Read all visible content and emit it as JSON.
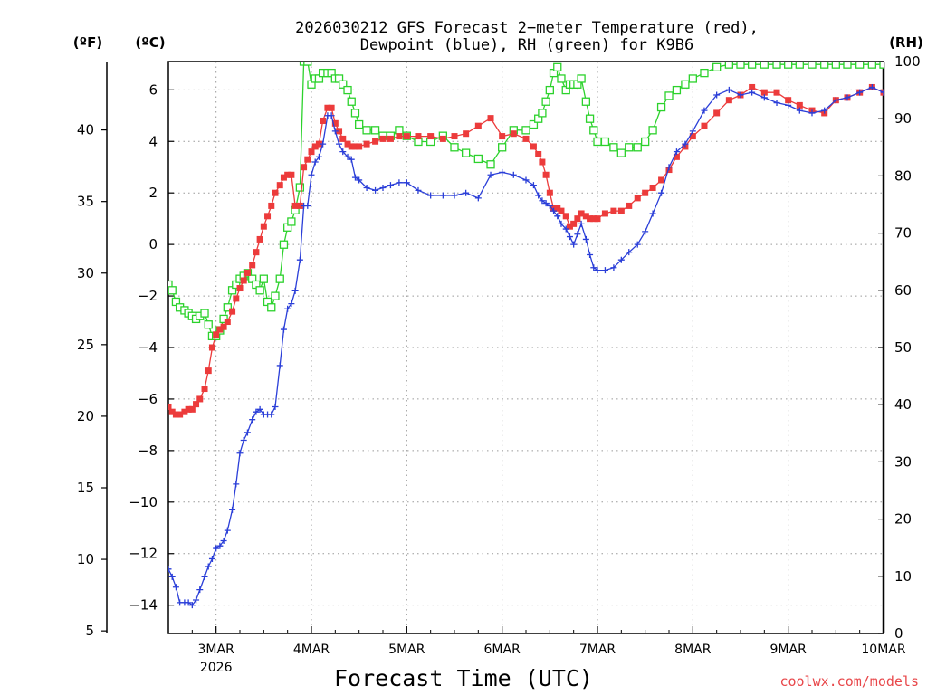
{
  "chart_data": {
    "type": "line",
    "title_line1": "2026030212 GFS Forecast 2−meter Temperature (red),",
    "title_line2": "Dewpoint (blue), RH (green) for K9B6",
    "units": {
      "fahrenheit": "(ºF)",
      "celsius": "(ºC)",
      "rh": "(RH)"
    },
    "xlabel": "Forecast Time (UTC)",
    "credit": "coolwx.com/models",
    "x_range": [
      -0.5,
      7.0
    ],
    "x_ticks": [
      {
        "day": 0,
        "label": "3MAR",
        "label2": "2026"
      },
      {
        "day": 1,
        "label": "4MAR"
      },
      {
        "day": 2,
        "label": "5MAR"
      },
      {
        "day": 3,
        "label": "6MAR"
      },
      {
        "day": 4,
        "label": "7MAR"
      },
      {
        "day": 5,
        "label": "8MAR"
      },
      {
        "day": 6,
        "label": "9MAR"
      },
      {
        "day": 7,
        "label": "10MAR"
      }
    ],
    "celsius_axis": {
      "range": [
        -15.1,
        7.1
      ],
      "ticks": [
        6,
        4,
        2,
        0,
        -2,
        -4,
        -6,
        -8,
        -10,
        -12,
        -14
      ],
      "labels": [
        "6",
        "4",
        "2",
        "0",
        "−2",
        "−4",
        "−6",
        "−8",
        "−10",
        "−12",
        "−14"
      ]
    },
    "fahrenheit_axis": {
      "ticks": [
        40,
        35,
        30,
        25,
        20,
        15,
        10,
        5
      ],
      "labels": [
        "40",
        "35",
        "30",
        "25",
        "20",
        "15",
        "10",
        "5"
      ]
    },
    "rh_axis": {
      "range": [
        0,
        100
      ],
      "ticks": [
        100,
        90,
        80,
        70,
        60,
        50,
        40,
        30,
        20,
        10,
        0
      ],
      "labels": [
        "100",
        "90",
        "80",
        "70",
        "60",
        "50",
        "40",
        "30",
        "20",
        "10",
        "0"
      ]
    },
    "series": [
      {
        "name": "Temperature",
        "unit": "C",
        "color": "#ec3b3b",
        "marker": "filled-square",
        "x": [
          -0.5,
          -0.46,
          -0.42,
          -0.38,
          -0.33,
          -0.29,
          -0.25,
          -0.21,
          -0.17,
          -0.12,
          -0.08,
          -0.04,
          0,
          0.04,
          0.08,
          0.12,
          0.17,
          0.21,
          0.25,
          0.29,
          0.33,
          0.38,
          0.42,
          0.46,
          0.5,
          0.54,
          0.58,
          0.62,
          0.67,
          0.71,
          0.75,
          0.79,
          0.83,
          0.88,
          0.92,
          0.96,
          1,
          1.04,
          1.08,
          1.12,
          1.17,
          1.21,
          1.25,
          1.29,
          1.33,
          1.38,
          1.42,
          1.46,
          1.5,
          1.58,
          1.67,
          1.75,
          1.83,
          1.92,
          2,
          2.12,
          2.25,
          2.38,
          2.5,
          2.62,
          2.75,
          2.88,
          3,
          3.12,
          3.25,
          3.33,
          3.38,
          3.42,
          3.46,
          3.5,
          3.54,
          3.58,
          3.62,
          3.67,
          3.71,
          3.75,
          3.79,
          3.83,
          3.88,
          3.92,
          3.96,
          4,
          4.08,
          4.17,
          4.25,
          4.33,
          4.42,
          4.5,
          4.58,
          4.67,
          4.75,
          4.83,
          4.92,
          5,
          5.12,
          5.25,
          5.38,
          5.5,
          5.62,
          5.75,
          5.88,
          6,
          6.12,
          6.25,
          6.38,
          6.5,
          6.62,
          6.75,
          6.88,
          7
        ],
        "values": [
          -6.3,
          -6.5,
          -6.6,
          -6.6,
          -6.5,
          -6.4,
          -6.4,
          -6.2,
          -6.0,
          -5.6,
          -4.9,
          -4.0,
          -3.5,
          -3.3,
          -3.2,
          -3.0,
          -2.6,
          -2.1,
          -1.7,
          -1.4,
          -1.1,
          -0.8,
          -0.3,
          0.2,
          0.7,
          1.1,
          1.5,
          2.0,
          2.3,
          2.6,
          2.7,
          2.7,
          1.5,
          1.5,
          3.0,
          3.3,
          3.6,
          3.8,
          3.9,
          4.8,
          5.3,
          5.3,
          4.7,
          4.4,
          4.1,
          3.9,
          3.8,
          3.8,
          3.8,
          3.9,
          4.0,
          4.1,
          4.1,
          4.2,
          4.2,
          4.2,
          4.2,
          4.1,
          4.2,
          4.3,
          4.6,
          4.9,
          4.2,
          4.3,
          4.1,
          3.8,
          3.5,
          3.2,
          2.7,
          2.0,
          1.4,
          1.4,
          1.3,
          1.1,
          0.7,
          0.8,
          1.0,
          1.2,
          1.1,
          1.0,
          1.0,
          1.0,
          1.2,
          1.3,
          1.3,
          1.5,
          1.8,
          2.0,
          2.2,
          2.5,
          2.9,
          3.4,
          3.8,
          4.2,
          4.6,
          5.1,
          5.6,
          5.8,
          6.1,
          5.9,
          5.9,
          5.6,
          5.4,
          5.2,
          5.1,
          5.6,
          5.7,
          5.9,
          6.1,
          5.9
        ]
      },
      {
        "name": "Dewpoint",
        "unit": "C",
        "color": "#2a3ed8",
        "marker": "plus",
        "x": [
          -0.5,
          -0.46,
          -0.42,
          -0.38,
          -0.33,
          -0.29,
          -0.25,
          -0.21,
          -0.17,
          -0.12,
          -0.08,
          -0.04,
          0,
          0.04,
          0.08,
          0.12,
          0.17,
          0.21,
          0.25,
          0.29,
          0.33,
          0.38,
          0.42,
          0.46,
          0.5,
          0.54,
          0.58,
          0.62,
          0.67,
          0.71,
          0.75,
          0.79,
          0.83,
          0.88,
          0.92,
          0.96,
          1,
          1.04,
          1.08,
          1.12,
          1.17,
          1.21,
          1.25,
          1.29,
          1.33,
          1.38,
          1.42,
          1.46,
          1.5,
          1.58,
          1.67,
          1.75,
          1.83,
          1.92,
          2,
          2.12,
          2.25,
          2.38,
          2.5,
          2.62,
          2.75,
          2.88,
          3,
          3.12,
          3.25,
          3.33,
          3.38,
          3.42,
          3.46,
          3.5,
          3.54,
          3.58,
          3.62,
          3.67,
          3.71,
          3.75,
          3.79,
          3.83,
          3.88,
          3.92,
          3.96,
          4,
          4.08,
          4.17,
          4.25,
          4.33,
          4.42,
          4.5,
          4.58,
          4.67,
          4.75,
          4.83,
          4.92,
          5,
          5.12,
          5.25,
          5.38,
          5.5,
          5.62,
          5.75,
          5.88,
          6,
          6.12,
          6.25,
          6.38,
          6.5,
          6.62,
          6.75,
          6.88,
          7
        ],
        "values": [
          -12.6,
          -12.9,
          -13.3,
          -13.9,
          -13.9,
          -13.9,
          -14.0,
          -13.8,
          -13.4,
          -12.9,
          -12.5,
          -12.2,
          -11.8,
          -11.7,
          -11.5,
          -11.1,
          -10.3,
          -9.3,
          -8.1,
          -7.6,
          -7.3,
          -6.8,
          -6.5,
          -6.4,
          -6.6,
          -6.6,
          -6.6,
          -6.3,
          -4.7,
          -3.3,
          -2.5,
          -2.3,
          -1.8,
          -0.6,
          1.5,
          1.5,
          2.7,
          3.2,
          3.4,
          3.9,
          5.0,
          5.0,
          4.4,
          3.9,
          3.6,
          3.4,
          3.3,
          2.6,
          2.5,
          2.2,
          2.1,
          2.2,
          2.3,
          2.4,
          2.4,
          2.1,
          1.9,
          1.9,
          1.9,
          2.0,
          1.8,
          2.7,
          2.8,
          2.7,
          2.5,
          2.3,
          1.9,
          1.7,
          1.6,
          1.5,
          1.3,
          1.1,
          0.8,
          0.6,
          0.3,
          0.0,
          0.4,
          0.8,
          0.2,
          -0.4,
          -0.9,
          -1.0,
          -1.0,
          -0.9,
          -0.6,
          -0.3,
          0.0,
          0.5,
          1.2,
          2.0,
          3.0,
          3.6,
          3.9,
          4.4,
          5.2,
          5.8,
          6.0,
          5.8,
          5.9,
          5.7,
          5.5,
          5.4,
          5.2,
          5.1,
          5.2,
          5.6,
          5.7,
          5.9,
          6.1,
          5.9
        ]
      },
      {
        "name": "RH",
        "unit": "percent",
        "color": "#2cd22c",
        "marker": "open-square",
        "x": [
          -0.5,
          -0.46,
          -0.42,
          -0.38,
          -0.33,
          -0.29,
          -0.25,
          -0.21,
          -0.17,
          -0.12,
          -0.08,
          -0.04,
          0,
          0.04,
          0.08,
          0.12,
          0.17,
          0.21,
          0.25,
          0.29,
          0.33,
          0.38,
          0.42,
          0.46,
          0.5,
          0.54,
          0.58,
          0.62,
          0.67,
          0.71,
          0.75,
          0.79,
          0.83,
          0.88,
          0.92,
          0.96,
          1,
          1.04,
          1.08,
          1.12,
          1.17,
          1.21,
          1.25,
          1.29,
          1.33,
          1.38,
          1.42,
          1.46,
          1.5,
          1.58,
          1.67,
          1.75,
          1.83,
          1.92,
          2,
          2.12,
          2.25,
          2.38,
          2.5,
          2.62,
          2.75,
          2.88,
          3,
          3.12,
          3.25,
          3.33,
          3.38,
          3.42,
          3.46,
          3.5,
          3.54,
          3.58,
          3.62,
          3.67,
          3.71,
          3.75,
          3.79,
          3.83,
          3.88,
          3.92,
          3.96,
          4,
          4.08,
          4.17,
          4.25,
          4.33,
          4.42,
          4.5,
          4.58,
          4.67,
          4.75,
          4.83,
          4.92,
          5,
          5.12,
          5.25,
          5.38,
          5.5,
          5.62,
          5.75,
          5.88,
          6,
          6.12,
          6.25,
          6.38,
          6.5,
          6.62,
          6.75,
          6.88,
          7
        ],
        "values": [
          61,
          60,
          58,
          57,
          56.5,
          56,
          55.5,
          55,
          55.5,
          56,
          54,
          52,
          52,
          53,
          55,
          57,
          60,
          61,
          62,
          62.5,
          63,
          62,
          61,
          60,
          62,
          58,
          57,
          59,
          62,
          68,
          71,
          72,
          74,
          78,
          100,
          100,
          96,
          97,
          97,
          98,
          98,
          98,
          97,
          97,
          96,
          95,
          93,
          91,
          89,
          88,
          88,
          87,
          87,
          88,
          87,
          86,
          86,
          87,
          85,
          84,
          83,
          82,
          85,
          88,
          88,
          89,
          90,
          91,
          93,
          95,
          98,
          99,
          97,
          95,
          96,
          96,
          96,
          97,
          93,
          90,
          88,
          86,
          86,
          85,
          84,
          85,
          85,
          86,
          88,
          92,
          94,
          95,
          96,
          97,
          98,
          99,
          99.5,
          99.5,
          99.5,
          99.5,
          99.5,
          99.5,
          99.5,
          99.5,
          99.5,
          99.5,
          99.5,
          99.5,
          99.5,
          99.5
        ]
      }
    ]
  }
}
